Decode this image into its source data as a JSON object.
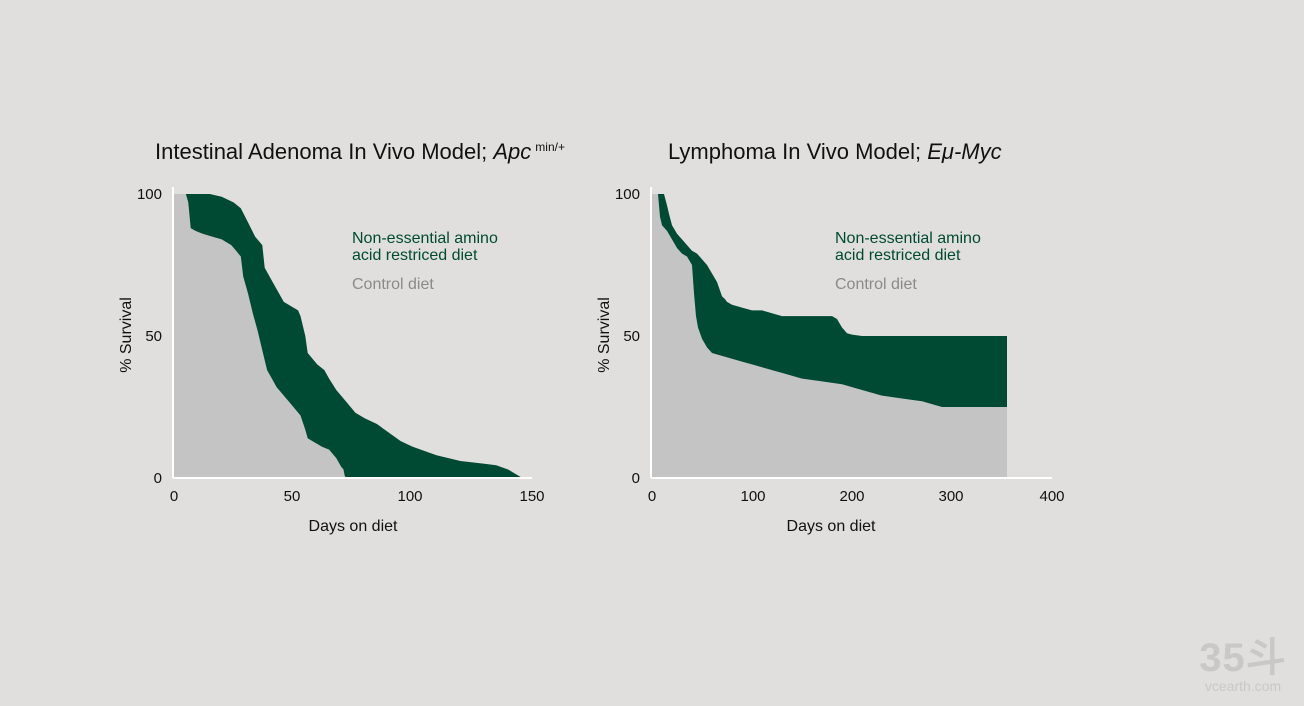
{
  "chart_data": [
    {
      "type": "area",
      "title": "Intestinal Adenoma In Vivo Model; ",
      "title_italic": "Apc",
      "title_superscript": "min/+",
      "xlabel": "Days on diet",
      "ylabel": "% Survival",
      "xlim": [
        0,
        150
      ],
      "ylim": [
        0,
        100
      ],
      "xticks": [
        "0",
        "50",
        "100",
        "150"
      ],
      "yticks": [
        "100",
        "50",
        "0"
      ],
      "legend_position": "top-right",
      "series": [
        {
          "name": "Non-essential amino acid restriced diet",
          "color": "#004a33",
          "x": [
            0,
            5,
            10,
            15,
            20,
            25,
            28,
            31,
            34,
            37,
            38,
            42,
            46,
            48,
            52,
            53,
            55,
            56,
            60,
            63,
            65,
            68,
            72,
            76,
            80,
            85,
            90,
            95,
            100,
            110,
            120,
            130,
            135,
            140,
            144,
            146
          ],
          "y": [
            100,
            100,
            100,
            100,
            99,
            97,
            95,
            90,
            85,
            82,
            74,
            68,
            62,
            61,
            59,
            57,
            50,
            44,
            40,
            38,
            35,
            31,
            27,
            23,
            21,
            19,
            16,
            13,
            11,
            8,
            6,
            5,
            4.5,
            3,
            1,
            0
          ]
        },
        {
          "name": "Control diet",
          "color": "#c4c4c4",
          "x": [
            0,
            5,
            6,
            7,
            9,
            12,
            16,
            20,
            24,
            26,
            28,
            29,
            31,
            33,
            35,
            37,
            39,
            41,
            43,
            46,
            48,
            51,
            53,
            55,
            56,
            58,
            60,
            62,
            65,
            68,
            70,
            71,
            71.5,
            72
          ],
          "y": [
            100,
            100,
            97,
            88,
            87,
            86,
            85,
            84,
            82,
            80,
            78,
            71,
            65,
            58,
            52,
            45,
            38,
            35,
            32,
            29,
            27,
            24,
            22,
            17,
            14,
            13,
            12,
            11,
            10,
            7,
            4,
            3,
            1,
            0
          ]
        }
      ]
    },
    {
      "type": "area",
      "title": "Lymphoma In Vivo Model; ",
      "title_italic": "Eμ-Myc",
      "title_superscript": "",
      "xlabel": "Days on diet",
      "ylabel": "% Survival",
      "xlim": [
        0,
        400
      ],
      "ylim": [
        0,
        100
      ],
      "xticks": [
        "0",
        "100",
        "200",
        "300",
        "400"
      ],
      "yticks": [
        "100",
        "50",
        "0"
      ],
      "legend_position": "top-right",
      "series": [
        {
          "name": "Non-essential amino acid restriced diet",
          "color": "#004a33",
          "x": [
            0,
            6,
            12,
            15,
            17,
            20,
            25,
            30,
            35,
            40,
            45,
            50,
            55,
            60,
            65,
            70,
            73,
            75,
            80,
            90,
            100,
            110,
            120,
            130,
            140,
            150,
            160,
            170,
            180,
            185,
            190,
            195,
            200,
            210,
            250,
            300,
            355
          ],
          "y": [
            100,
            100,
            100,
            96,
            93,
            89,
            86,
            84,
            82,
            80,
            79,
            77,
            75,
            72,
            69,
            64,
            63,
            62,
            61,
            60,
            59,
            59,
            58,
            57,
            57,
            57,
            57,
            57,
            57,
            56,
            53,
            51,
            50.5,
            50,
            50,
            50,
            50
          ]
        },
        {
          "name": "Control diet",
          "color": "#c4c4c4",
          "x": [
            0,
            6,
            8,
            10,
            15,
            20,
            25,
            30,
            35,
            40,
            41,
            42,
            44,
            46,
            50,
            55,
            60,
            70,
            80,
            90,
            100,
            110,
            120,
            130,
            150,
            170,
            190,
            210,
            230,
            250,
            270,
            290,
            310,
            355
          ],
          "y": [
            100,
            100,
            92,
            89,
            87,
            84,
            81,
            79,
            78,
            75,
            70,
            65,
            57,
            53,
            49,
            46,
            44,
            43,
            42,
            41,
            40,
            39,
            38,
            37,
            35,
            34,
            33,
            31,
            29,
            28,
            27,
            25,
            25,
            25
          ]
        }
      ]
    }
  ],
  "watermark": {
    "logo": "35斗",
    "url": "vcearth.com"
  }
}
